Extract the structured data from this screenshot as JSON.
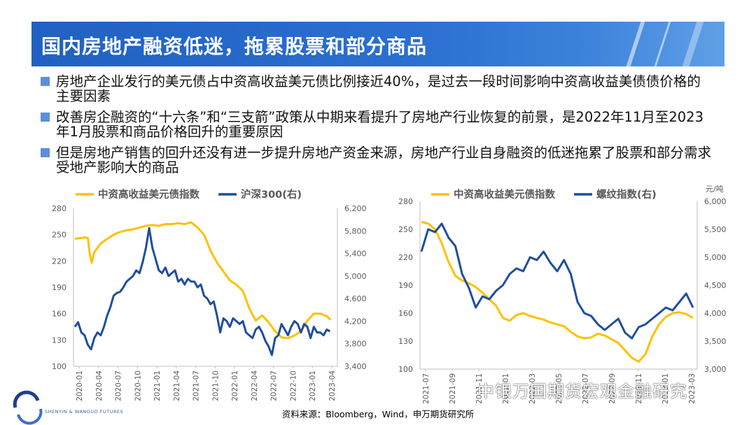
{
  "header": {
    "title": "国内房地产融资低迷，拖累股票和部分商品"
  },
  "bullets": [
    "房地产企业发行的美元债占中资高收益美元债比例接近40%，是过去一段时间影响中资高收益美债债价格的主要因素",
    "改善房企融资的“十六条”和“三支箭”政策从中期来看提升了房地产行业恢复的前景，是2022年11月至2023年1月股票和商品价格回升的重要原因",
    "但是房地产销售的回升还没有进一步提升房地产资金来源，房地产行业自身融资的低迷拖累了股票和部分需求受地产影响大的商品"
  ],
  "footer": {
    "source": "资料来源：Bloomberg，Wind，申万期货研究所"
  },
  "branding": {
    "logo_text": "SHENYIN & WANGUO FUTURES",
    "watermark": "中银万国期货宏观金融研究"
  },
  "colors": {
    "yellow": "#ffc000",
    "blue": "#1f4e9c",
    "title_bg": "#2563c4",
    "bullet": "#5b8fd8"
  },
  "chart_data": [
    {
      "type": "line",
      "legend": [
        "中资高收益美元债指数",
        "沪深300(右)"
      ],
      "x_ticks": [
        "2020-01",
        "2020-04",
        "2020-07",
        "2020-10",
        "2021-01",
        "2021-04",
        "2021-07",
        "2021-10",
        "2022-01",
        "2022-04",
        "2022-07",
        "2022-10",
        "2023-01",
        "2023-04"
      ],
      "y_left": {
        "ticks": [
          "280",
          "250",
          "220",
          "190",
          "160",
          "130",
          "100"
        ],
        "lim": [
          100,
          280
        ]
      },
      "y_right": {
        "ticks": [
          "6,200",
          "5,800",
          "5,400",
          "5,000",
          "4,600",
          "4,200",
          "3,800",
          "3,400"
        ],
        "lim": [
          3400,
          6200
        ]
      },
      "series": [
        {
          "name": "中资高收益美元债指数",
          "color": "#ffc000",
          "axis": "left",
          "x": [
            0,
            0.5,
            1,
            1.5,
            2,
            2.3,
            2.6,
            3,
            4,
            5,
            6,
            7,
            8,
            9,
            10,
            11,
            12,
            13,
            14,
            15,
            16,
            17,
            18,
            19,
            20,
            21,
            22,
            23,
            24,
            25,
            26,
            27,
            28,
            29,
            30,
            31,
            32,
            33,
            34,
            35,
            36,
            37,
            38,
            39,
            39.6
          ],
          "y": [
            245,
            246,
            246,
            247,
            246,
            228,
            218,
            230,
            240,
            245,
            250,
            253,
            255,
            256,
            258,
            260,
            261,
            260,
            262,
            262,
            263,
            262,
            264,
            258,
            250,
            232,
            218,
            208,
            198,
            193,
            186,
            166,
            152,
            158,
            150,
            140,
            133,
            132,
            135,
            140,
            152,
            160,
            160,
            157,
            153
          ]
        },
        {
          "name": "沪深300(右)",
          "color": "#1f4e9c",
          "axis": "right",
          "x": [
            0,
            0.5,
            1,
            1.5,
            2,
            2.5,
            3,
            3.5,
            4,
            4.5,
            5,
            5.5,
            6,
            6.5,
            7,
            7.5,
            8,
            8.5,
            9,
            9.5,
            10,
            10.5,
            11,
            11.5,
            12,
            12.5,
            13,
            13.5,
            14,
            14.5,
            15,
            15.5,
            16,
            16.5,
            17,
            17.5,
            18,
            18.5,
            19,
            19.5,
            20,
            20.5,
            21,
            21.5,
            22,
            22.5,
            23,
            23.5,
            24,
            24.5,
            25,
            25.5,
            26,
            26.5,
            27,
            27.5,
            28,
            28.5,
            29,
            29.5,
            30,
            30.5,
            31,
            31.5,
            32,
            32.5,
            33,
            33.5,
            34,
            34.5,
            35,
            35.5,
            36,
            36.5,
            37,
            37.5,
            38,
            38.5,
            39,
            39.5
          ],
          "y": [
            4100,
            4180,
            4000,
            3950,
            3780,
            3700,
            3900,
            4000,
            3950,
            4100,
            4300,
            4450,
            4650,
            4700,
            4720,
            4800,
            4900,
            4950,
            5000,
            5100,
            5050,
            5250,
            5500,
            5850,
            5500,
            5300,
            5100,
            5050,
            5150,
            5000,
            5050,
            5100,
            4900,
            4950,
            4850,
            4950,
            4900,
            4900,
            4800,
            4850,
            4650,
            4600,
            4500,
            4550,
            4300,
            4000,
            4250,
            4200,
            4100,
            4250,
            4200,
            4150,
            4200,
            4000,
            3950,
            3900,
            4050,
            4100,
            4000,
            3850,
            3750,
            3600,
            3900,
            3950,
            4150,
            4050,
            3950,
            4100,
            4200,
            4150,
            4000,
            4150,
            4100,
            3900,
            4100,
            4000,
            4000,
            3950,
            4050,
            4020
          ]
        }
      ]
    },
    {
      "type": "line",
      "legend": [
        "中资高收益美元债指数",
        "螺纹指数(右)"
      ],
      "y_right_unit": "元/吨",
      "x_ticks": [
        "2021-07",
        "2021-09",
        "2021-11",
        "2022-01",
        "2022-03",
        "2022-05",
        "2022-07",
        "2022-09",
        "2022-11",
        "2023-01",
        "2023-03"
      ],
      "y_left": {
        "ticks": [
          "280",
          "250",
          "220",
          "190",
          "160",
          "130",
          "100"
        ],
        "lim": [
          100,
          280
        ]
      },
      "y_right": {
        "ticks": [
          "6,000",
          "5,500",
          "5,000",
          "4,500",
          "4,000",
          "3,500",
          "3,000"
        ],
        "lim": [
          3000,
          6000
        ]
      },
      "series": [
        {
          "name": "中资高收益美元债指数",
          "color": "#ffc000",
          "axis": "left",
          "x": [
            0,
            1,
            2,
            3,
            4,
            5,
            6,
            7,
            8,
            9,
            10,
            11,
            12,
            13,
            14,
            15,
            16,
            17,
            18,
            19,
            20,
            21,
            22,
            23,
            24,
            25,
            26,
            27,
            28,
            29,
            30,
            31,
            32,
            33,
            34,
            35,
            36,
            37,
            38,
            39,
            40
          ],
          "y": [
            258,
            256,
            250,
            235,
            215,
            200,
            195,
            192,
            188,
            182,
            175,
            168,
            155,
            152,
            158,
            160,
            157,
            155,
            153,
            150,
            148,
            146,
            140,
            135,
            133,
            134,
            138,
            136,
            132,
            128,
            120,
            112,
            108,
            116,
            135,
            148,
            156,
            160,
            161,
            159,
            155
          ]
        },
        {
          "name": "螺纹指数(右)",
          "color": "#1f4e9c",
          "axis": "right",
          "x": [
            0,
            1,
            2,
            3,
            4,
            5,
            6,
            7,
            8,
            9,
            10,
            11,
            12,
            13,
            14,
            15,
            16,
            17,
            18,
            19,
            20,
            21,
            22,
            23,
            24,
            25,
            26,
            27,
            28,
            29,
            30,
            31,
            32,
            33,
            34,
            35,
            36,
            37,
            38,
            39,
            40
          ],
          "y": [
            5100,
            5500,
            5450,
            5600,
            5350,
            5200,
            4700,
            4450,
            4100,
            4300,
            4250,
            4400,
            4500,
            4700,
            4800,
            4750,
            5000,
            4950,
            5100,
            4900,
            4750,
            4950,
            4700,
            4200,
            4000,
            3950,
            3800,
            3700,
            3800,
            3900,
            3650,
            3550,
            3750,
            3800,
            3900,
            4000,
            4100,
            4050,
            4200,
            4350,
            4100
          ]
        }
      ]
    }
  ]
}
